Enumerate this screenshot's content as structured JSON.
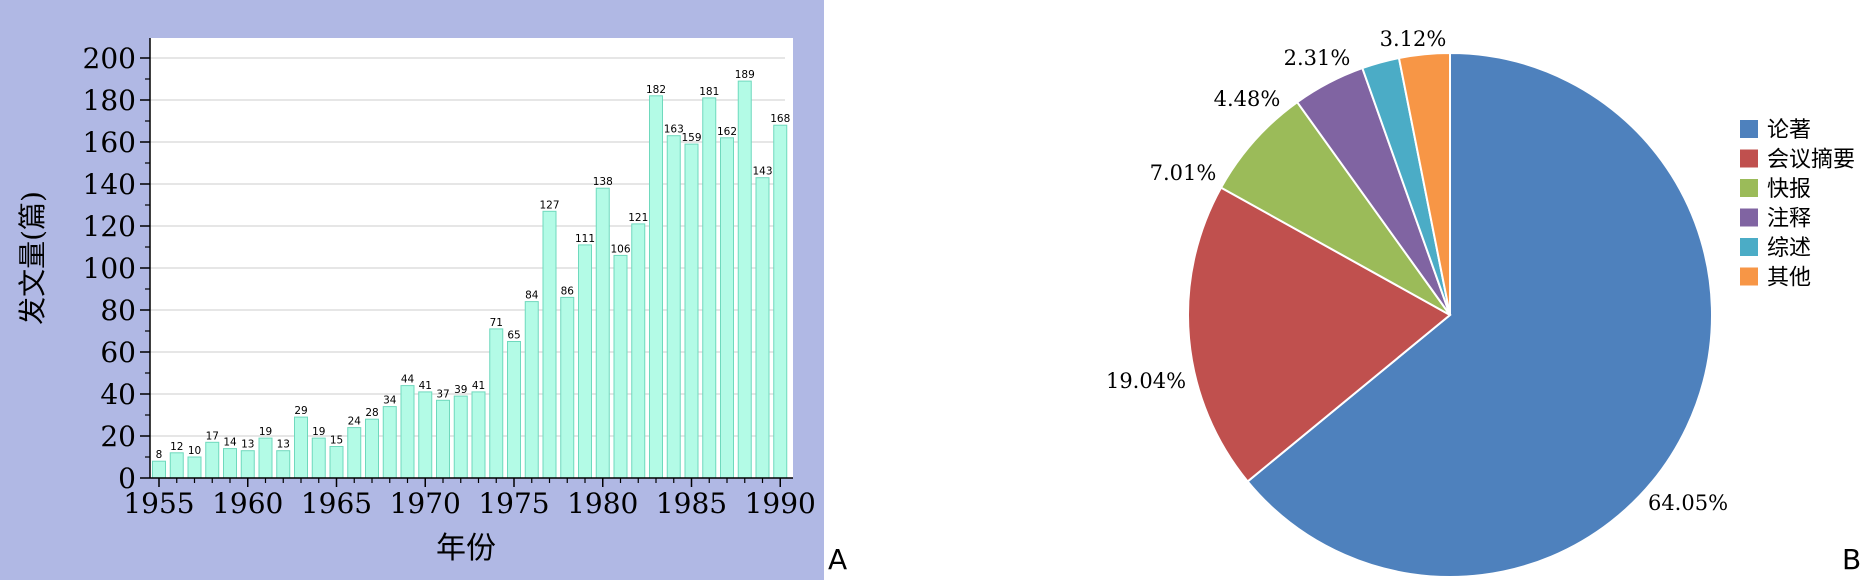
{
  "panel_a_label": "A",
  "panel_b_label": "B",
  "chart_data": [
    {
      "type": "bar",
      "title": "",
      "xlabel": "年份",
      "ylabel": "发文量(篇)",
      "x": [
        1955,
        1956,
        1957,
        1958,
        1959,
        1960,
        1961,
        1962,
        1963,
        1964,
        1965,
        1966,
        1967,
        1968,
        1969,
        1970,
        1971,
        1972,
        1973,
        1974,
        1975,
        1976,
        1977,
        1978,
        1979,
        1980,
        1981,
        1982,
        1983,
        1984,
        1985,
        1986,
        1987,
        1988,
        1989,
        1990
      ],
      "values": [
        8,
        12,
        10,
        17,
        14,
        13,
        19,
        13,
        29,
        19,
        15,
        24,
        28,
        34,
        44,
        41,
        37,
        39,
        41,
        71,
        65,
        84,
        127,
        86,
        111,
        138,
        106,
        121,
        182,
        163,
        159,
        181,
        162,
        189,
        143,
        168
      ],
      "xlim": [
        1955,
        1990
      ],
      "ylim": [
        0,
        200
      ],
      "x_ticks": [
        1955,
        1960,
        1965,
        1970,
        1975,
        1980,
        1985,
        1990
      ],
      "y_ticks": [
        0,
        20,
        40,
        60,
        80,
        100,
        120,
        140,
        160,
        180,
        200
      ],
      "grid": true,
      "data_labels": true,
      "colors": {
        "bar_fill": "#b3fbe6",
        "bar_stroke": "#6fd9bd",
        "panel_background": "#b0b8e4",
        "plot_background": "#ffffff",
        "grid": "#d8d8d8"
      }
    },
    {
      "type": "pie",
      "title": "",
      "categories": [
        "论著",
        "会议摘要",
        "快报",
        "注释",
        "综述",
        "其他"
      ],
      "values": [
        64.05,
        19.04,
        7.01,
        4.48,
        2.31,
        3.12
      ],
      "value_labels": [
        "64.05%",
        "19.04%",
        "7.01%",
        "4.48%",
        "2.31%",
        "3.12%"
      ],
      "colors": [
        "#4e81bd",
        "#c0504e",
        "#9bbb59",
        "#8064a2",
        "#4bacc6",
        "#f79646"
      ],
      "legend": "right",
      "start": "12 o'clock",
      "direction": "clockwise"
    }
  ]
}
